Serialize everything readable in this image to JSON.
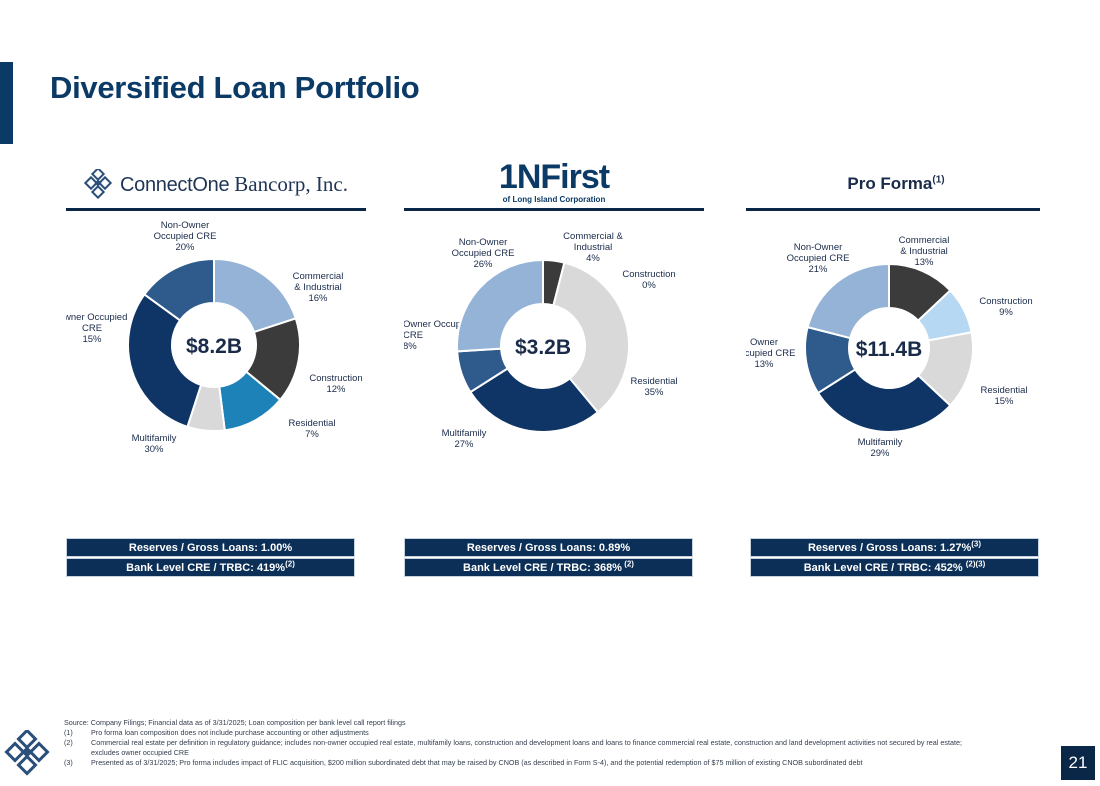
{
  "page": {
    "title": "Diversified Loan Portfolio",
    "page_number": "21"
  },
  "brands": {
    "connectone_part1": "ConnectOne",
    "connectone_part2": "Bancorp, Inc.",
    "flic_main": "1NFirst",
    "flic_sub": "of Long Island Corporation",
    "proforma_title": "Pro Forma",
    "proforma_sup": "(1)"
  },
  "colors": {
    "non_owner_cre": "#95b3d7",
    "commercial_industrial": "#3b3b3b",
    "construction_c1": "#1c82b8",
    "construction_pf": "#b6d8f2",
    "residential": "#d9d9d9",
    "multifamily": "#0e3566",
    "owner_occupied_cre": "#2e5a8c"
  },
  "chart_data": [
    {
      "type": "pie",
      "name": "ConnectOne Bancorp, Inc.",
      "center_label": "$8.2B",
      "slices": [
        {
          "label": "Non-Owner Occupied CRE",
          "label_lines": [
            "Non-Owner",
            "Occupied CRE"
          ],
          "value": 20,
          "pct": "20%",
          "color": "#95b3d7"
        },
        {
          "label": "Commercial & Industrial",
          "label_lines": [
            "Commercial",
            "& Industrial"
          ],
          "value": 16,
          "pct": "16%",
          "color": "#3b3b3b"
        },
        {
          "label": "Construction",
          "label_lines": [
            "Construction"
          ],
          "value": 12,
          "pct": "12%",
          "color": "#1c82b8"
        },
        {
          "label": "Residential",
          "label_lines": [
            "Residential"
          ],
          "value": 7,
          "pct": "7%",
          "color": "#d9d9d9"
        },
        {
          "label": "Multifamily",
          "label_lines": [
            "Multifamily"
          ],
          "value": 30,
          "pct": "30%",
          "color": "#0e3566"
        },
        {
          "label": "Owner Occupied CRE",
          "label_lines": [
            "Owner Occupied",
            "CRE"
          ],
          "value": 15,
          "pct": "15%",
          "color": "#2e5a8c"
        }
      ],
      "stats": [
        {
          "text": "Reserves / Gross Loans: 1.00%",
          "sup": ""
        },
        {
          "text": "Bank Level CRE / TRBC: 419%",
          "sup": "(2)"
        }
      ]
    },
    {
      "type": "pie",
      "name": "First of Long Island Corporation",
      "center_label": "$3.2B",
      "slices": [
        {
          "label": "Commercial & Industrial",
          "label_lines": [
            "Commercial &",
            "Industrial"
          ],
          "value": 4,
          "pct": "4%",
          "color": "#3b3b3b"
        },
        {
          "label": "Construction",
          "label_lines": [
            "Construction"
          ],
          "value": 0,
          "pct": "0%",
          "color": "#1c82b8"
        },
        {
          "label": "Residential",
          "label_lines": [
            "Residential"
          ],
          "value": 35,
          "pct": "35%",
          "color": "#d9d9d9"
        },
        {
          "label": "Multifamily",
          "label_lines": [
            "Multifamily"
          ],
          "value": 27,
          "pct": "27%",
          "color": "#0e3566"
        },
        {
          "label": "Owner Occupied CRE",
          "label_lines": [
            "Owner Occupied",
            "CRE"
          ],
          "value": 8,
          "pct": "8%",
          "color": "#2e5a8c"
        },
        {
          "label": "Non-Owner Occupied CRE",
          "label_lines": [
            "Non-Owner",
            "Occupied CRE"
          ],
          "value": 26,
          "pct": "26%",
          "color": "#95b3d7"
        }
      ],
      "stats": [
        {
          "text": "Reserves / Gross Loans: 0.89%",
          "sup": ""
        },
        {
          "text": "Bank Level CRE / TRBC: 368%",
          "sup": " (2)"
        }
      ]
    },
    {
      "type": "pie",
      "name": "Pro Forma",
      "center_label": "$11.4B",
      "slices": [
        {
          "label": "Commercial & Industrial",
          "label_lines": [
            "Commercial",
            "& Industrial"
          ],
          "value": 13,
          "pct": "13%",
          "color": "#3b3b3b"
        },
        {
          "label": "Construction",
          "label_lines": [
            "Construction"
          ],
          "value": 9,
          "pct": "9%",
          "color": "#b6d8f2"
        },
        {
          "label": "Residential",
          "label_lines": [
            "Residential"
          ],
          "value": 15,
          "pct": "15%",
          "color": "#d9d9d9"
        },
        {
          "label": "Multifamily",
          "label_lines": [
            "Multifamily"
          ],
          "value": 29,
          "pct": "29%",
          "color": "#0e3566"
        },
        {
          "label": "Owner Occupied CRE",
          "label_lines": [
            "Owner",
            "Occupied CRE"
          ],
          "value": 13,
          "pct": "13%",
          "color": "#2e5a8c"
        },
        {
          "label": "Non-Owner Occupied CRE",
          "label_lines": [
            "Non-Owner",
            "Occupied CRE"
          ],
          "value": 21,
          "pct": "21%",
          "color": "#95b3d7"
        }
      ],
      "stats": [
        {
          "text": "Reserves / Gross Loans: 1.27%",
          "sup": "(3)"
        },
        {
          "text": "Bank Level CRE / TRBC: 452% ",
          "sup": "(2)(3)"
        }
      ]
    }
  ],
  "footnotes": {
    "source": "Source: Company Filings; Financial data as of 3/31/2025; Loan composition per bank level call report filings",
    "items": [
      {
        "num": "(1)",
        "text": "Pro forma loan composition does not include purchase accounting or other adjustments"
      },
      {
        "num": "(2)",
        "text": "Commercial real estate per definition in regulatory guidance; includes non-owner occupied real estate, multifamily loans, construction and development loans and loans to finance commercial real estate, construction and land development activities not secured by real estate; excludes owner occupied CRE"
      },
      {
        "num": "(3)",
        "text": "Presented as of 3/31/2025; Pro forma includes impact of FLIC acquisition, $200 million subordinated debt that may be raised by CNOB (as described in Form S-4), and the potential redemption of $75 million of existing CNOB subordinated debt"
      }
    ]
  }
}
